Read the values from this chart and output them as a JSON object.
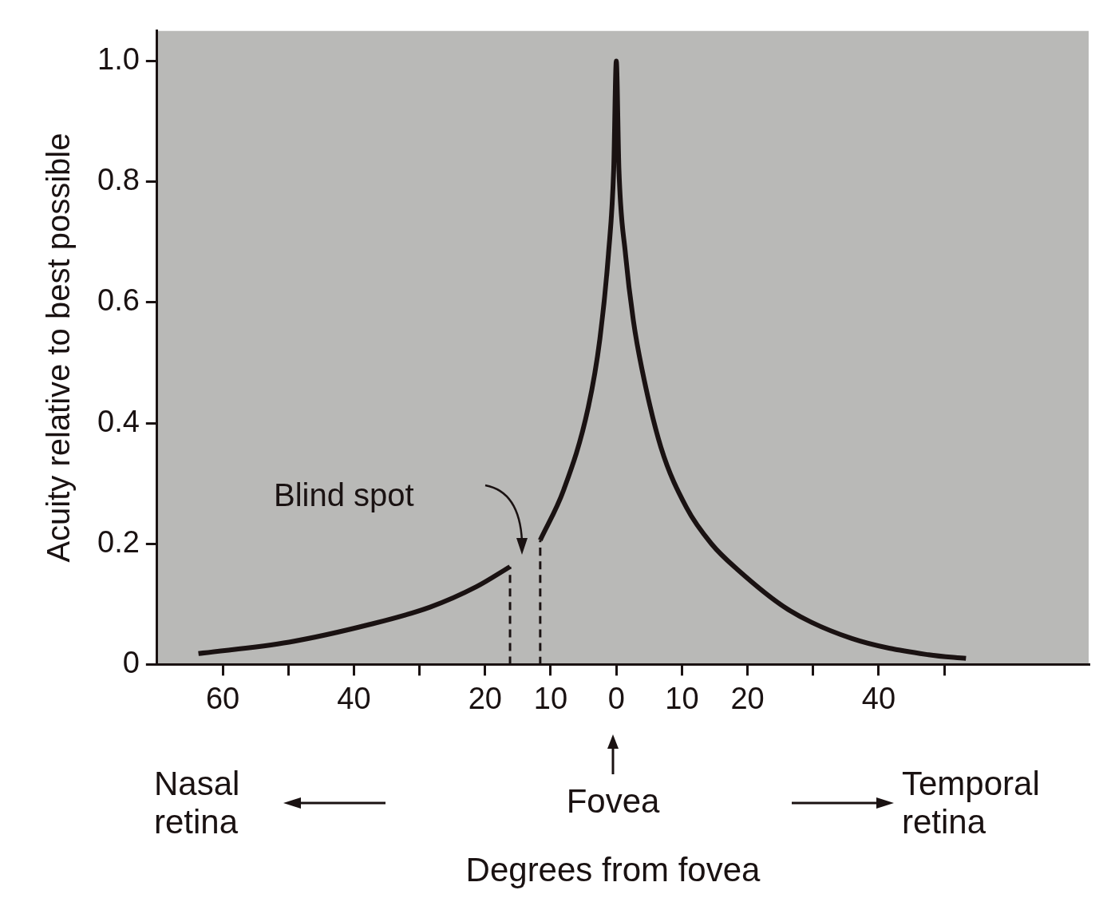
{
  "chart_data": {
    "type": "line",
    "xlabel": "Degrees from fovea",
    "ylabel": "Acuity relative to best possible",
    "xlim": [
      -70,
      72
    ],
    "xticks": [
      {
        "value": -60,
        "label": "60"
      },
      {
        "value": -50,
        "label": null
      },
      {
        "value": -40,
        "label": "40"
      },
      {
        "value": -30,
        "label": null
      },
      {
        "value": -20,
        "label": "20"
      },
      {
        "value": -10,
        "label": "10"
      },
      0,
      10,
      20,
      {
        "value": 30,
        "label": null
      },
      40,
      {
        "value": 50,
        "label": null
      }
    ],
    "ylim": [
      0,
      1.05
    ],
    "yticks": [
      0,
      0.2,
      0.4,
      0.6,
      0.8,
      {
        "value": 1,
        "label": "1.0"
      }
    ],
    "marker": "none",
    "series": [
      {
        "color": "#1a1212",
        "line_style": "solid",
        "x": [
          -63.7,
          -49.9,
          -37.7,
          -28.4,
          -21.3,
          -16.2
        ],
        "values": [
          0.018,
          0.037,
          0.066,
          0.095,
          0.129,
          0.162
        ]
      },
      {
        "color": "#1a1212",
        "line_style": "solid",
        "x": [
          -11.6,
          -8.0,
          -4.3,
          -2.5,
          -1.2,
          -0.4,
          0,
          0.4,
          1.4,
          2.6,
          3.9,
          6.8,
          10.7,
          14.5,
          18.4,
          26.2,
          35.9,
          47.6,
          53.3
        ],
        "values": [
          0.206,
          0.29,
          0.425,
          0.54,
          0.68,
          0.82,
          1.0,
          0.82,
          0.68,
          0.57,
          0.49,
          0.36,
          0.26,
          0.2,
          0.158,
          0.091,
          0.043,
          0.016,
          0.01
        ]
      },
      {
        "color": "#1a1212",
        "line_style": "dashed",
        "x": [
          -16.2,
          -16.2
        ],
        "values": [
          0,
          0.162
        ]
      },
      {
        "color": "#1a1212",
        "line_style": "dashed",
        "x": [
          -11.6,
          -11.6
        ],
        "values": [
          0,
          0.206
        ]
      }
    ],
    "annotations": [
      "Blind spot",
      "Nasal retina",
      "Fovea",
      "Temporal retina"
    ]
  }
}
